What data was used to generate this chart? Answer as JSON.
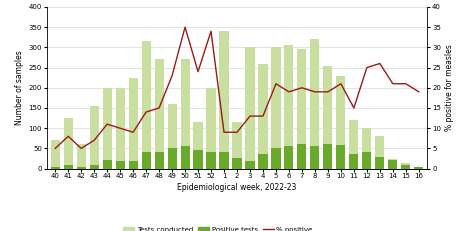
{
  "weeks": [
    "40",
    "41",
    "42",
    "43",
    "44",
    "45",
    "46",
    "47",
    "48",
    "49",
    "50",
    "51",
    "52",
    "1",
    "2",
    "3",
    "4",
    "5",
    "6",
    "7",
    "8",
    "9",
    "10",
    "11",
    "12",
    "13",
    "14",
    "15",
    "16"
  ],
  "tests_conducted": [
    70,
    125,
    60,
    155,
    200,
    200,
    225,
    315,
    270,
    160,
    270,
    115,
    200,
    340,
    115,
    300,
    260,
    300,
    305,
    295,
    320,
    255,
    230,
    120,
    100,
    80,
    25,
    15,
    5
  ],
  "positive_tests": [
    5,
    8,
    5,
    10,
    22,
    20,
    20,
    42,
    42,
    50,
    55,
    47,
    40,
    40,
    27,
    18,
    37,
    52,
    55,
    60,
    55,
    62,
    58,
    35,
    40,
    30,
    22,
    10,
    3
  ],
  "pct_positive": [
    5,
    8,
    5,
    7,
    11,
    10,
    9,
    14,
    15,
    23,
    35,
    24,
    34,
    9,
    9,
    13,
    13,
    21,
    19,
    20,
    19,
    19,
    21,
    15,
    25,
    26,
    21,
    21,
    19
  ],
  "left_ylim": [
    0,
    400
  ],
  "left_yticks": [
    0,
    50,
    100,
    150,
    200,
    250,
    300,
    350,
    400
  ],
  "right_ylim": [
    0,
    40
  ],
  "right_yticks": [
    0,
    5,
    10,
    15,
    20,
    25,
    30,
    35,
    40
  ],
  "bar_color_light": "#c8dfa0",
  "bar_color_dark": "#6aaa2a",
  "line_color": "#9b1a1a",
  "xlabel": "Epidemiological week, 2022-23",
  "ylabel_left": "Number of samples",
  "ylabel_right": "% positive for measles",
  "legend_labels": [
    "Tests conducted",
    "Positive tests",
    "% positive"
  ],
  "bg_color": "#ffffff",
  "grid_color": "#d8d8d8",
  "axis_fontsize": 5.5,
  "tick_fontsize": 5.0,
  "legend_fontsize": 5.0
}
